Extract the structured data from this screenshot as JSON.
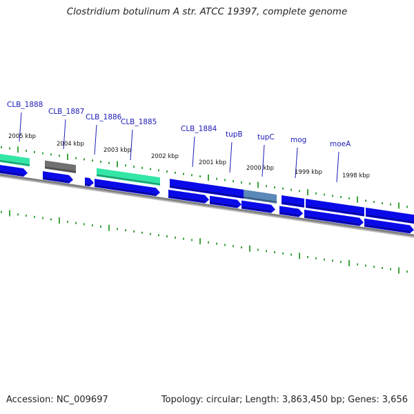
{
  "title": "Clostridium botulinum A str. ATCC 19397, complete genome",
  "footer": {
    "accession": "Accession: NC_009697",
    "topology": "Topology: circular; Length: 3,863,450 bp; Genes: 3,656"
  },
  "colors": {
    "cds": "#0a0ae8",
    "rna_green": "#33e6a6",
    "gray_feature": "#707070",
    "light_blue_feature": "#5a88b8",
    "backbone": "#808080",
    "tick": "#0a8a0a",
    "label": "#1a1ab4"
  },
  "gene_labels": [
    "CLB_1888",
    "CLB_1887",
    "CLB_1886",
    "CLB_1885",
    "CLB_1884",
    "tupB",
    "tupC",
    "mog",
    "moeA"
  ],
  "kbp_labels": [
    "2005 kbp",
    "2004 kbp",
    "2003 kbp",
    "2002 kbp",
    "2001 kbp",
    "2000 kbp",
    "1999 kbp",
    "1998 kbp"
  ]
}
